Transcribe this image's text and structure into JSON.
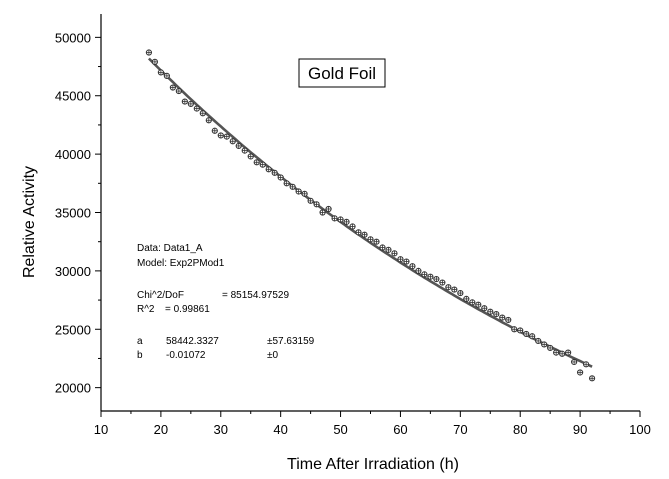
{
  "chart_data": {
    "type": "scatter",
    "title": "Gold Foil",
    "xlabel": "Time After Irradiation (h)",
    "ylabel": "Relative Activity",
    "xlim": [
      10,
      100
    ],
    "ylim": [
      18000,
      52000
    ],
    "xticks": [
      10,
      20,
      30,
      40,
      50,
      60,
      70,
      80,
      90,
      100
    ],
    "yticks": [
      20000,
      25000,
      30000,
      35000,
      40000,
      45000,
      50000
    ],
    "grid": false,
    "series": [
      {
        "x": [
          18,
          19,
          20,
          21,
          22,
          23,
          24,
          25,
          26,
          27,
          28,
          29,
          30,
          31,
          32,
          33,
          34,
          35,
          36,
          37,
          38,
          39,
          40,
          41,
          42,
          43,
          44,
          45,
          46,
          47,
          48,
          49,
          50,
          51,
          52,
          53,
          54,
          55,
          56,
          57,
          58,
          59,
          60,
          61,
          62,
          63,
          64,
          65,
          66,
          67,
          68,
          69,
          70,
          71,
          72,
          73,
          74,
          75,
          76,
          77,
          78,
          79,
          80,
          81,
          82,
          83,
          84,
          85,
          86,
          87,
          88,
          89,
          90,
          91,
          92
        ],
        "y": [
          48700,
          47900,
          47000,
          46700,
          45700,
          45400,
          44500,
          44300,
          43900,
          43500,
          42900,
          42000,
          41600,
          41500,
          41100,
          40700,
          40300,
          39800,
          39300,
          39100,
          38700,
          38400,
          38000,
          37500,
          37200,
          36800,
          36600,
          36000,
          35700,
          35000,
          35300,
          34500,
          34400,
          34200,
          33800,
          33300,
          33100,
          32700,
          32500,
          32000,
          31800,
          31500,
          31000,
          30800,
          30400,
          30000,
          29700,
          29500,
          29300,
          29000,
          28600,
          28400,
          28100,
          27600,
          27300,
          27100,
          26800,
          26500,
          26300,
          26000,
          25800,
          25000,
          24900,
          24600,
          24400,
          24000,
          23700,
          23400,
          23000,
          22900,
          23000,
          22200,
          21300,
          22000,
          20800
        ]
      }
    ],
    "fit": {
      "a": 58442.3327,
      "b": -0.01072,
      "x_range": [
        18,
        92
      ]
    },
    "annotation": {
      "line1": "Data: Data1_A",
      "line2": "Model: Exp2PMod1",
      "chi_label": "Chi^2/DoF",
      "chi_value": "= 85154.97529",
      "r2_label": "R^2",
      "r2_value": "= 0.99861",
      "param_a_label": "a",
      "param_a_value": "58442.3327",
      "param_a_err": "±57.63159",
      "param_b_label": "b",
      "param_b_value": "-0.01072",
      "param_b_err": "±0"
    },
    "colors": {
      "fit_line": "#555555",
      "marker_stroke": "#333333",
      "axis": "#000000"
    }
  }
}
